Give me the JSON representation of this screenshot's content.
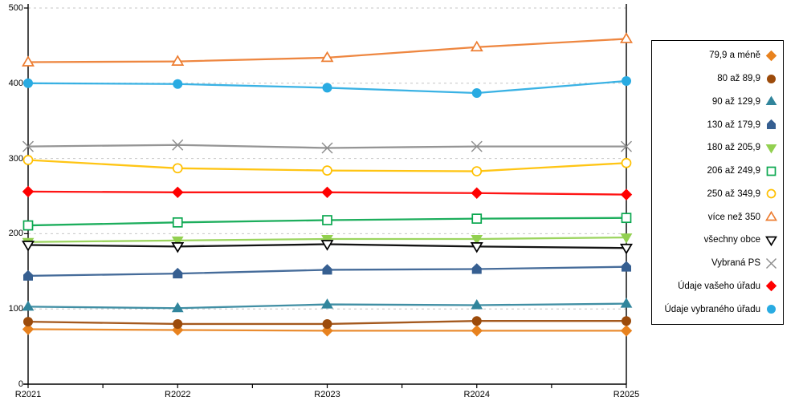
{
  "chart_data": {
    "type": "line",
    "title": "",
    "xlabel": "",
    "ylabel": "",
    "x_categories": [
      "R2021",
      "R2022",
      "R2023",
      "R2024",
      "R2025"
    ],
    "ylim": [
      0,
      500
    ],
    "yticks": [
      0,
      100,
      200,
      300,
      400,
      500
    ],
    "grid": "horizontal-dashed",
    "legend_position": "right",
    "series": [
      {
        "name": "79,9 a méně",
        "marker": "diamond",
        "fill": "filled",
        "color": "#E8821E",
        "values": [
          73,
          72,
          71,
          71,
          71
        ]
      },
      {
        "name": "80 až 89,9",
        "marker": "circle",
        "fill": "filled",
        "color": "#9C4B0B",
        "values": [
          83,
          80,
          80,
          84,
          84
        ]
      },
      {
        "name": "90 až 129,9",
        "marker": "triangle-up",
        "fill": "filled",
        "color": "#31859C",
        "values": [
          103,
          101,
          106,
          105,
          107
        ]
      },
      {
        "name": "130 až 179,9",
        "marker": "pentagon",
        "fill": "filled",
        "color": "#365F91",
        "values": [
          144,
          147,
          152,
          153,
          156
        ]
      },
      {
        "name": "180 až 205,9",
        "marker": "triangle-down",
        "fill": "filled",
        "color": "#92D050",
        "values": [
          189,
          191,
          193,
          193,
          195
        ]
      },
      {
        "name": "206 až 249,9",
        "marker": "square",
        "fill": "open",
        "color": "#0AA74F",
        "values": [
          211,
          215,
          218,
          220,
          221
        ]
      },
      {
        "name": "250 až 349,9",
        "marker": "circle",
        "fill": "open",
        "color": "#FFC000",
        "values": [
          298,
          287,
          284,
          283,
          294
        ]
      },
      {
        "name": "více než 350",
        "marker": "triangle-up",
        "fill": "open",
        "color": "#ED7D31",
        "values": [
          428,
          429,
          434,
          448,
          459
        ]
      },
      {
        "name": "všechny obce",
        "marker": "triangle-down",
        "fill": "open",
        "color": "#000000",
        "values": [
          185,
          183,
          186,
          183,
          181
        ]
      },
      {
        "name": "Vybraná PS",
        "marker": "x",
        "fill": "open",
        "color": "#8C8C8C",
        "values": [
          316,
          318,
          314,
          316,
          316
        ]
      },
      {
        "name": "Údaje vašeho úřadu",
        "marker": "diamond",
        "fill": "filled",
        "color": "#FF0000",
        "values": [
          256,
          255,
          255,
          254,
          252
        ]
      },
      {
        "name": "Údaje vybraného úřadu",
        "marker": "circle",
        "fill": "filled",
        "color": "#29ABE2",
        "values": [
          400,
          399,
          394,
          387,
          403
        ]
      }
    ],
    "gridline_color": "#C6C6C6",
    "axis_color": "#000000"
  }
}
